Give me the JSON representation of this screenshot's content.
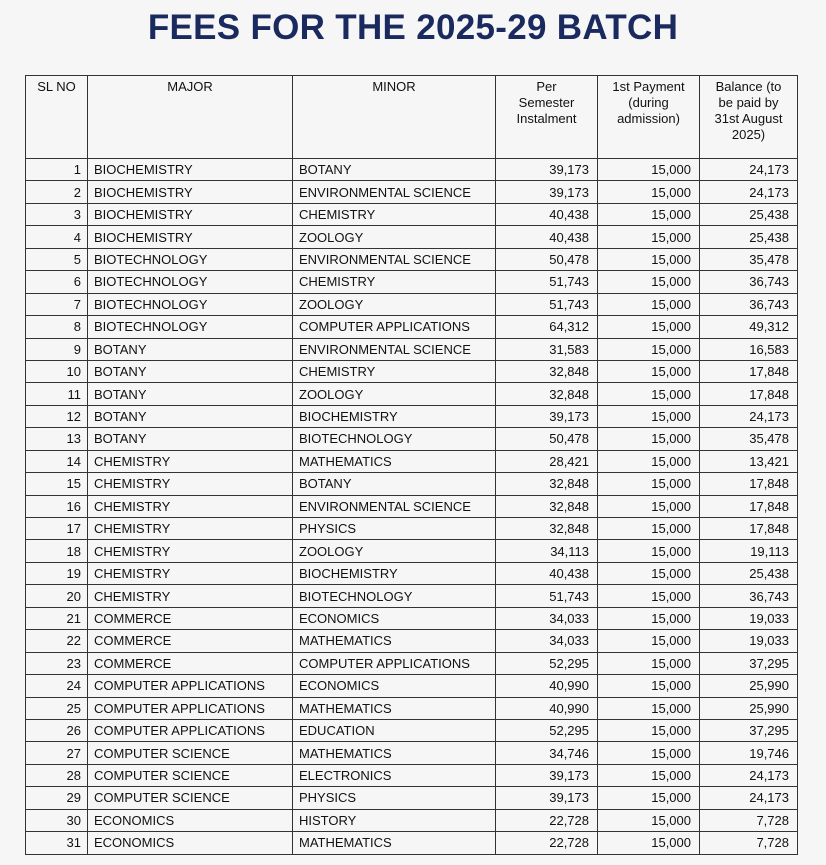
{
  "title": "FEES FOR THE 2025-29 BATCH",
  "table": {
    "header": [
      [
        "SL NO"
      ],
      [
        "MAJOR"
      ],
      [
        "MINOR"
      ],
      [
        "Per",
        "Semester",
        "Instalment"
      ],
      [
        "1st Payment",
        "(during",
        "admission)"
      ],
      [
        "Balance (to",
        "be paid by",
        "31st August",
        "2025)"
      ]
    ],
    "rows": [
      [
        "1",
        "BIOCHEMISTRY",
        "BOTANY",
        "39,173",
        "15,000",
        "24,173"
      ],
      [
        "2",
        "BIOCHEMISTRY",
        "ENVIRONMENTAL SCIENCE",
        "39,173",
        "15,000",
        "24,173"
      ],
      [
        "3",
        "BIOCHEMISTRY",
        "CHEMISTRY",
        "40,438",
        "15,000",
        "25,438"
      ],
      [
        "4",
        "BIOCHEMISTRY",
        "ZOOLOGY",
        "40,438",
        "15,000",
        "25,438"
      ],
      [
        "5",
        "BIOTECHNOLOGY",
        "ENVIRONMENTAL SCIENCE",
        "50,478",
        "15,000",
        "35,478"
      ],
      [
        "6",
        "BIOTECHNOLOGY",
        "CHEMISTRY",
        "51,743",
        "15,000",
        "36,743"
      ],
      [
        "7",
        "BIOTECHNOLOGY",
        "ZOOLOGY",
        "51,743",
        "15,000",
        "36,743"
      ],
      [
        "8",
        "BIOTECHNOLOGY",
        "COMPUTER APPLICATIONS",
        "64,312",
        "15,000",
        "49,312"
      ],
      [
        "9",
        "BOTANY",
        "ENVIRONMENTAL SCIENCE",
        "31,583",
        "15,000",
        "16,583"
      ],
      [
        "10",
        "BOTANY",
        "CHEMISTRY",
        "32,848",
        "15,000",
        "17,848"
      ],
      [
        "11",
        "BOTANY",
        "ZOOLOGY",
        "32,848",
        "15,000",
        "17,848"
      ],
      [
        "12",
        "BOTANY",
        "BIOCHEMISTRY",
        "39,173",
        "15,000",
        "24,173"
      ],
      [
        "13",
        "BOTANY",
        "BIOTECHNOLOGY",
        "50,478",
        "15,000",
        "35,478"
      ],
      [
        "14",
        "CHEMISTRY",
        "MATHEMATICS",
        "28,421",
        "15,000",
        "13,421"
      ],
      [
        "15",
        "CHEMISTRY",
        "BOTANY",
        "32,848",
        "15,000",
        "17,848"
      ],
      [
        "16",
        "CHEMISTRY",
        "ENVIRONMENTAL SCIENCE",
        "32,848",
        "15,000",
        "17,848"
      ],
      [
        "17",
        "CHEMISTRY",
        "PHYSICS",
        "32,848",
        "15,000",
        "17,848"
      ],
      [
        "18",
        "CHEMISTRY",
        "ZOOLOGY",
        "34,113",
        "15,000",
        "19,113"
      ],
      [
        "19",
        "CHEMISTRY",
        "BIOCHEMISTRY",
        "40,438",
        "15,000",
        "25,438"
      ],
      [
        "20",
        "CHEMISTRY",
        "BIOTECHNOLOGY",
        "51,743",
        "15,000",
        "36,743"
      ],
      [
        "21",
        "COMMERCE",
        "ECONOMICS",
        "34,033",
        "15,000",
        "19,033"
      ],
      [
        "22",
        "COMMERCE",
        "MATHEMATICS",
        "34,033",
        "15,000",
        "19,033"
      ],
      [
        "23",
        "COMMERCE",
        "COMPUTER APPLICATIONS",
        "52,295",
        "15,000",
        "37,295"
      ],
      [
        "24",
        "COMPUTER APPLICATIONS",
        "ECONOMICS",
        "40,990",
        "15,000",
        "25,990"
      ],
      [
        "25",
        "COMPUTER APPLICATIONS",
        "MATHEMATICS",
        "40,990",
        "15,000",
        "25,990"
      ],
      [
        "26",
        "COMPUTER APPLICATIONS",
        "EDUCATION",
        "52,295",
        "15,000",
        "37,295"
      ],
      [
        "27",
        "COMPUTER SCIENCE",
        "MATHEMATICS",
        "34,746",
        "15,000",
        "19,746"
      ],
      [
        "28",
        "COMPUTER SCIENCE",
        "ELECTRONICS",
        "39,173",
        "15,000",
        "24,173"
      ],
      [
        "29",
        "COMPUTER SCIENCE",
        "PHYSICS",
        "39,173",
        "15,000",
        "24,173"
      ],
      [
        "30",
        "ECONOMICS",
        "HISTORY",
        "22,728",
        "15,000",
        "7,728"
      ],
      [
        "31",
        "ECONOMICS",
        "MATHEMATICS",
        "22,728",
        "15,000",
        "7,728"
      ]
    ]
  }
}
